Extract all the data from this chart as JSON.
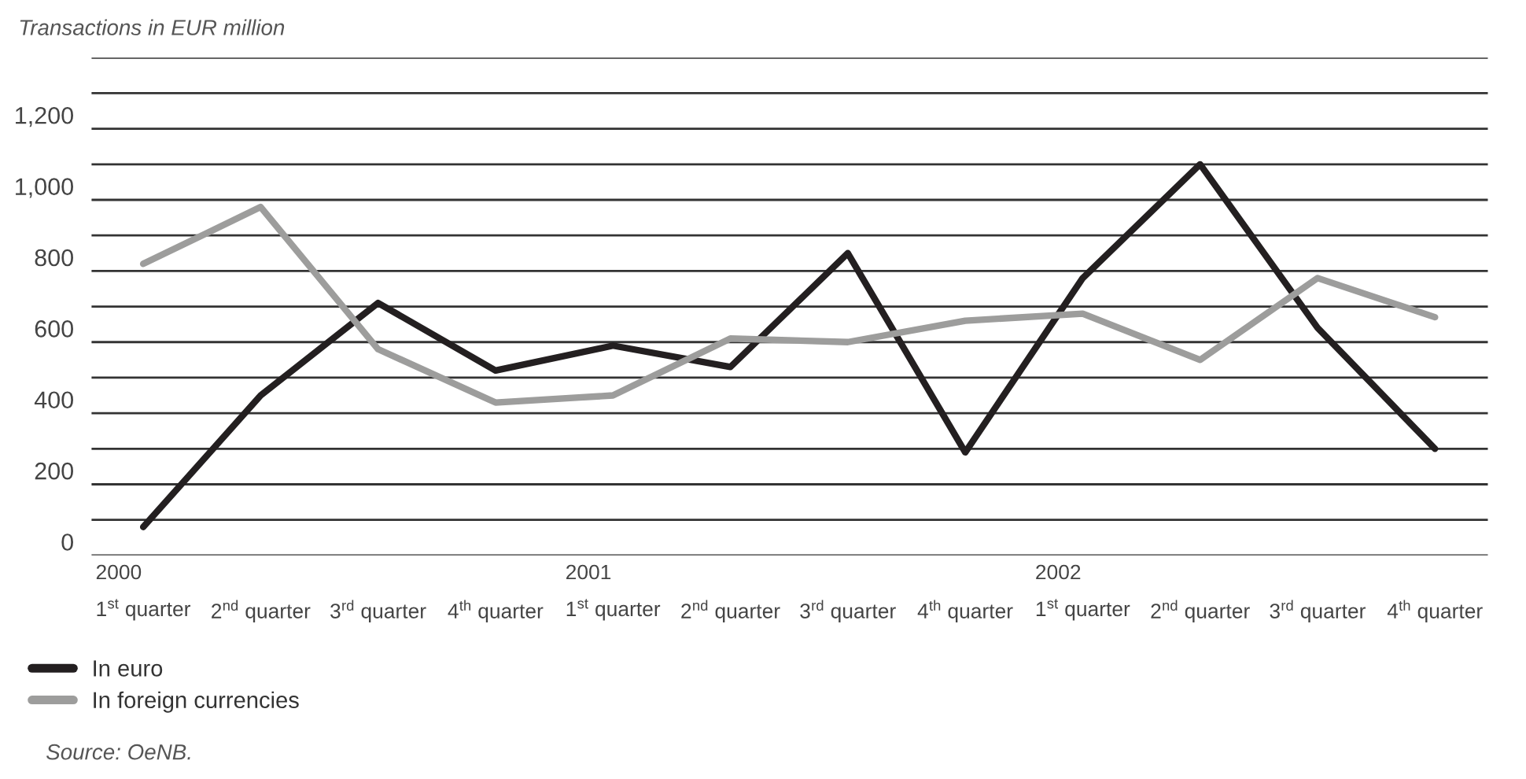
{
  "chart_data": {
    "type": "line",
    "title": "Transactions in EUR million",
    "categories": [
      "2000\n1$^{st}$ quarter",
      "2$^{nd}$ quarter",
      "3$^{rd}$ quarter",
      "4$^{th}$ quarter",
      "2001\n1$^{st}$ quarter",
      "2$^{nd}$ quarter",
      "3$^{rd}$ quarter",
      "4$^{th}$ quarter",
      "2002\n1$^{st}$ quarter",
      "2$^{nd}$ quarter",
      "3$^{rd}$ quarter",
      "4$^{th}$ quarter"
    ],
    "series": [
      {
        "name": "In euro",
        "color": "#231f20",
        "values": [
          80,
          450,
          710,
          520,
          590,
          530,
          850,
          290,
          780,
          1100,
          640,
          300
        ]
      },
      {
        "name": "In foreign currencies",
        "color": "#9d9d9c",
        "values": [
          820,
          980,
          580,
          430,
          450,
          610,
          600,
          660,
          680,
          550,
          780,
          670
        ]
      }
    ],
    "ylim": [
      0,
      1400
    ],
    "yticks": [
      0,
      {
        "value": 100,
        "label": null
      },
      {
        "value": 200,
        "label": "200"
      },
      {
        "value": 300,
        "label": null
      },
      {
        "value": 400,
        "label": "400"
      },
      {
        "value": 500,
        "label": null
      },
      {
        "value": 600,
        "label": "600"
      },
      {
        "value": 700,
        "label": null
      },
      {
        "value": 800,
        "label": "800"
      },
      {
        "value": 900,
        "label": null
      },
      {
        "value": 1000,
        "label": "1,000"
      },
      {
        "value": 1100,
        "label": null
      },
      {
        "value": 1200,
        "label": "1,200"
      },
      {
        "value": 1300,
        "label": null
      },
      {
        "value": 1400,
        "label": null
      }
    ],
    "grid": "y",
    "legend": "bottom",
    "marker": "none",
    "line_style": "solid",
    "annotations": [
      "Source: OeNB."
    ]
  }
}
